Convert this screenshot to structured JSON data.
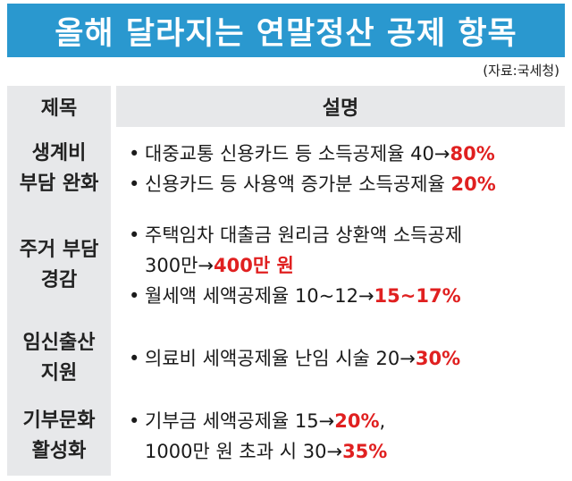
{
  "title": "올해 달라지는 연말정산 공제 항목",
  "source": "(자료:국세청)",
  "header": {
    "col_category": "제목",
    "col_description": "설명"
  },
  "colors": {
    "title_bg": "#2a98cf",
    "highlight": "#e02020",
    "cell_bg": "#e7e8ea"
  },
  "rows": [
    {
      "category_line1": "생계비",
      "category_line2": "부담 완화",
      "items": [
        {
          "text": "대중교통 신용카드 등 소득공제율 40→",
          "highlight": "80%",
          "cont": "",
          "cont_highlight": "",
          "after": ""
        },
        {
          "text": "신용카드 등 사용액 증가분 소득공제율 ",
          "highlight": "20%",
          "cont": "",
          "cont_highlight": "",
          "after": ""
        }
      ]
    },
    {
      "category_line1": "주거 부담",
      "category_line2": "경감",
      "items": [
        {
          "text": "주택임차 대출금 원리금 상환액 소득공제",
          "highlight": "",
          "cont": "300만→",
          "cont_highlight": "400만 원",
          "after": ""
        },
        {
          "text": "월세액 세액공제율 10~12→",
          "highlight": "15~17%",
          "cont": "",
          "cont_highlight": "",
          "after": ""
        }
      ]
    },
    {
      "category_line1": "임신출산",
      "category_line2": "지원",
      "items": [
        {
          "text": "의료비 세액공제율 난임 시술 20→",
          "highlight": "30%",
          "cont": "",
          "cont_highlight": "",
          "after": ""
        }
      ]
    },
    {
      "category_line1": "기부문화",
      "category_line2": "활성화",
      "items": [
        {
          "text": "기부금 세액공제율 15→",
          "highlight": "20%",
          "after": ",",
          "cont": "1000만 원 초과 시 30→",
          "cont_highlight": "35%"
        }
      ]
    }
  ],
  "bullet": "•"
}
